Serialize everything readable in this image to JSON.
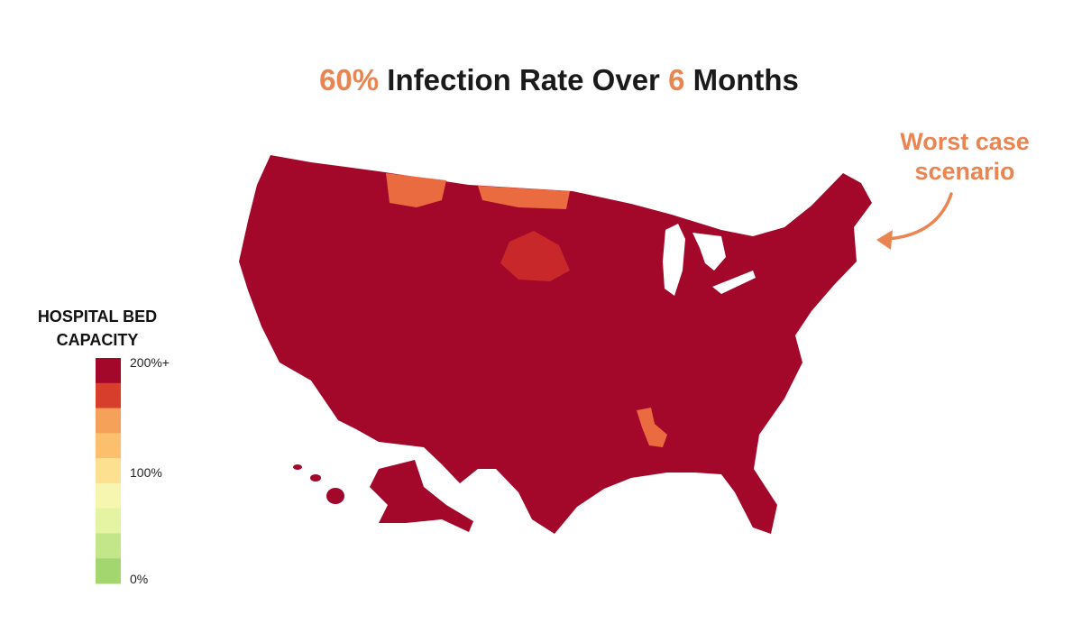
{
  "title": {
    "parts": [
      {
        "text": "60%",
        "color": "#ea8451"
      },
      {
        "text": " Infection Rate Over ",
        "color": "#1a1a1a"
      },
      {
        "text": "6",
        "color": "#ea8451"
      },
      {
        "text": " Months",
        "color": "#1a1a1a"
      }
    ]
  },
  "annotation": {
    "lines": [
      "Worst case",
      "scenario"
    ],
    "color": "#ea8451"
  },
  "legend": {
    "title_lines": [
      "HOSPITAL BED",
      "CAPACITY"
    ],
    "labels": [
      "200%+",
      "100%",
      "0%"
    ],
    "colors": [
      "#a3082b",
      "#d73e2c",
      "#f6a15a",
      "#fbbf6e",
      "#fde191",
      "#f7f6b0",
      "#e5f4a3",
      "#c4e68a",
      "#a3d66f"
    ]
  }
}
